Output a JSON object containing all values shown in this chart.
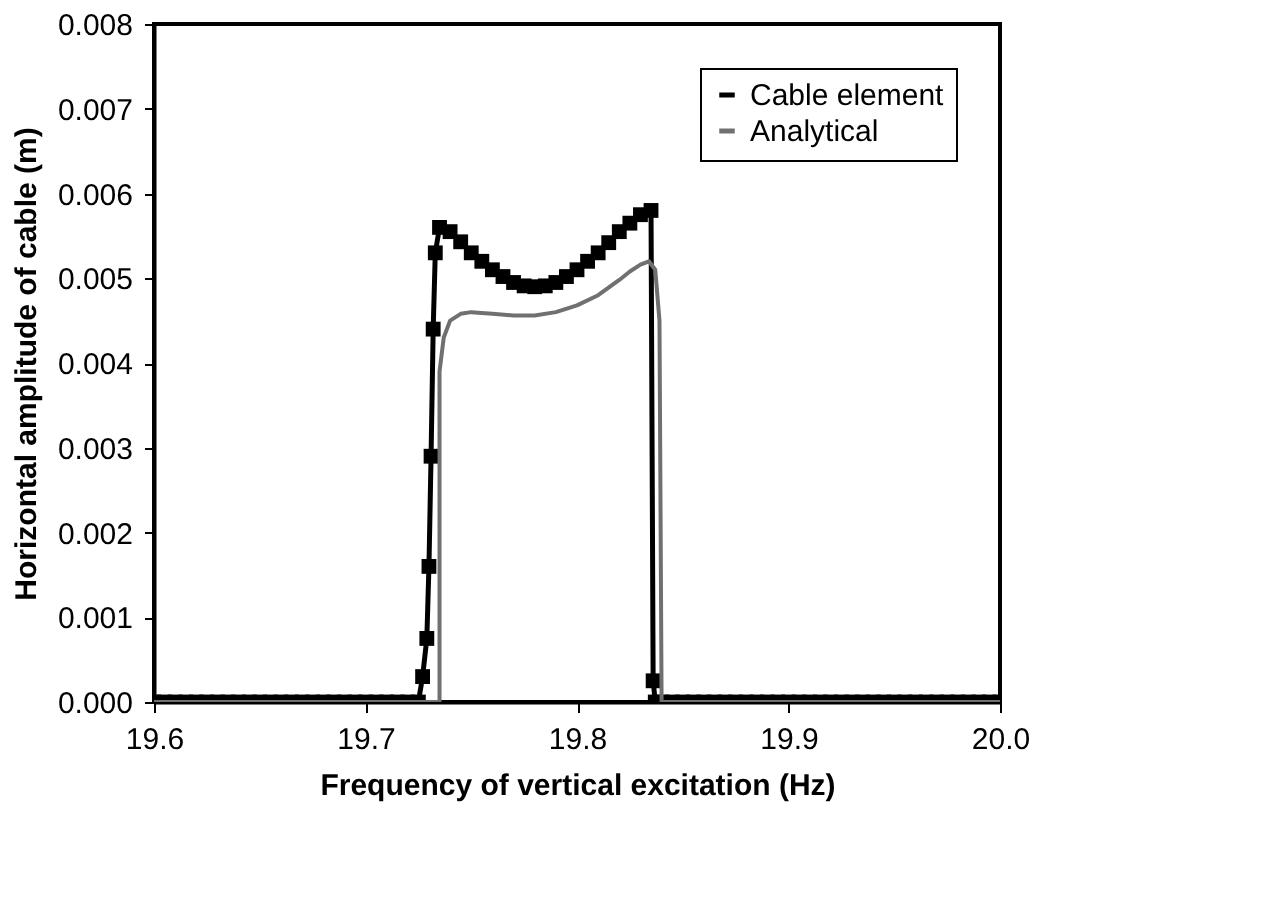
{
  "chart_data": {
    "type": "line",
    "xlabel": "Frequency of vertical excitation (Hz)",
    "ylabel": "Horizontal amplitude of cable (m)",
    "xlim": [
      19.6,
      20.0
    ],
    "xticks": [
      19.6,
      19.7,
      19.8,
      19.9,
      {
        "value": 20.0,
        "label": "20.0"
      }
    ],
    "ylim": [
      0,
      0.008
    ],
    "yticks": [
      {
        "value": 0,
        "label": "0.000"
      },
      {
        "value": 0.001,
        "label": "0.001"
      },
      {
        "value": 0.002,
        "label": "0.002"
      },
      {
        "value": 0.003,
        "label": "0.003"
      },
      {
        "value": 0.004,
        "label": "0.004"
      },
      {
        "value": 0.005,
        "label": "0.005"
      },
      {
        "value": 0.006,
        "label": "0.006"
      },
      {
        "value": 0.007,
        "label": "0.007"
      },
      {
        "value": 0.008,
        "label": "0.008"
      }
    ],
    "grid": false,
    "legend": "top right",
    "line_style": "solid",
    "series": [
      {
        "name": "Cable element",
        "color": "#000000",
        "marker": "square",
        "x": [
          19.6,
          19.605,
          19.61,
          19.615,
          19.62,
          19.625,
          19.63,
          19.635,
          19.64,
          19.645,
          19.65,
          19.655,
          19.66,
          19.665,
          19.67,
          19.675,
          19.68,
          19.685,
          19.69,
          19.695,
          19.7,
          19.705,
          19.71,
          19.715,
          19.72,
          19.725,
          19.727,
          19.729,
          19.73,
          19.731,
          19.732,
          19.733,
          19.735,
          19.74,
          19.745,
          19.75,
          19.755,
          19.76,
          19.765,
          19.77,
          19.775,
          19.78,
          19.785,
          19.79,
          19.795,
          19.8,
          19.805,
          19.81,
          19.815,
          19.82,
          19.825,
          19.83,
          19.835,
          19.836,
          19.837,
          19.84,
          19.845,
          19.85,
          19.855,
          19.86,
          19.865,
          19.87,
          19.875,
          19.88,
          19.885,
          19.89,
          19.895,
          19.9,
          19.905,
          19.91,
          19.915,
          19.92,
          19.925,
          19.93,
          19.935,
          19.94,
          19.945,
          19.95,
          19.955,
          19.96,
          19.965,
          19.97,
          19.975,
          19.98,
          19.985,
          19.99,
          19.995,
          20.0
        ],
        "values": [
          0,
          0,
          0,
          0,
          0,
          0,
          0,
          0,
          0,
          0,
          0,
          0,
          0,
          0,
          0,
          0,
          0,
          0,
          0,
          0,
          0,
          0,
          0,
          0,
          0,
          0,
          0.0003,
          0.00075,
          0.0016,
          0.0029,
          0.0044,
          0.0053,
          0.0056,
          0.00555,
          0.00543,
          0.0053,
          0.0052,
          0.0051,
          0.00502,
          0.00495,
          0.00491,
          0.0049,
          0.00491,
          0.00495,
          0.00502,
          0.0051,
          0.0052,
          0.0053,
          0.00542,
          0.00555,
          0.00565,
          0.00575,
          0.0058,
          0.00025,
          0,
          0,
          0,
          0,
          0,
          0,
          0,
          0,
          0,
          0,
          0,
          0,
          0,
          0,
          0,
          0,
          0,
          0,
          0,
          0,
          0,
          0,
          0,
          0,
          0,
          0,
          0,
          0,
          0,
          0,
          0,
          0,
          0,
          0
        ]
      },
      {
        "name": "Analytical",
        "color": "#707070",
        "marker": "none",
        "x": [
          19.6,
          19.735,
          19.735,
          19.737,
          19.74,
          19.745,
          19.75,
          19.76,
          19.77,
          19.78,
          19.79,
          19.8,
          19.81,
          19.82,
          19.825,
          19.83,
          19.834,
          19.837,
          19.839,
          19.84,
          20.0
        ],
        "values": [
          0,
          0,
          0.0039,
          0.0043,
          0.0045,
          0.00458,
          0.0046,
          0.00458,
          0.00456,
          0.00456,
          0.0046,
          0.00468,
          0.0048,
          0.00498,
          0.00508,
          0.00516,
          0.0052,
          0.0051,
          0.0045,
          0,
          0
        ]
      }
    ]
  }
}
